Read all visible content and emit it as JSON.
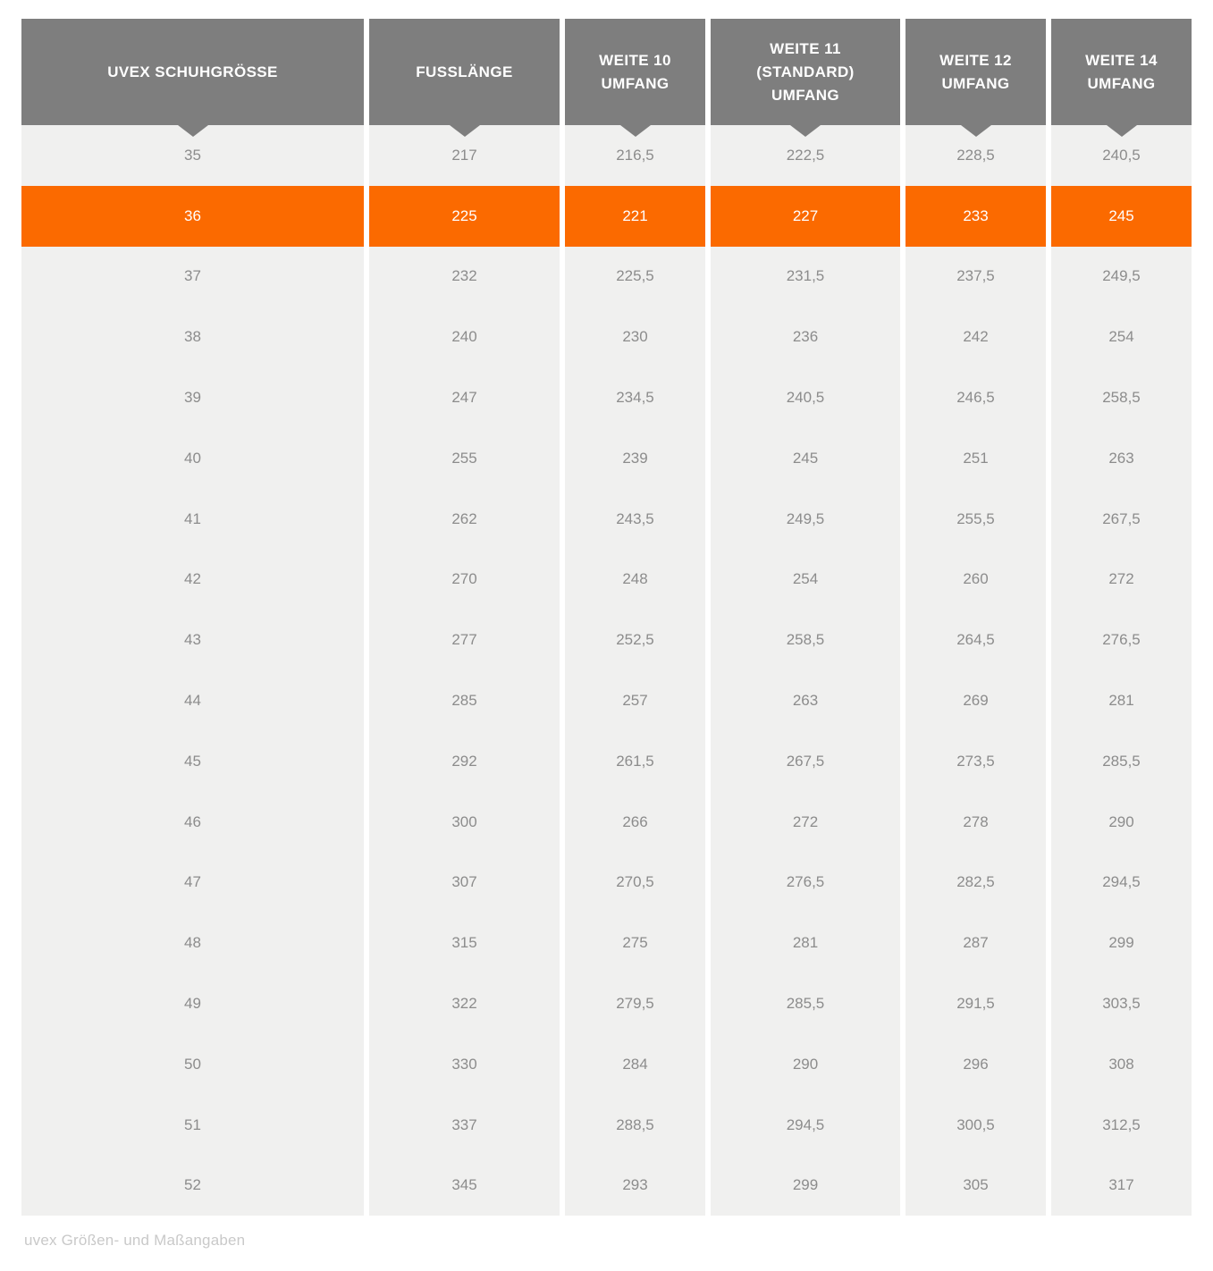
{
  "chart_data": {
    "type": "table",
    "title": "uvex Größen- und Maßangaben",
    "columns": [
      "UVEX SCHUHGRÖSSE",
      "FUSSLÄNGE",
      "WEITE 10 UMFANG",
      "WEITE 11 (STANDARD) UMFANG",
      "WEITE 12 UMFANG",
      "WEITE 14 UMFANG"
    ],
    "column_ids": [
      "uvex-schuhgroesse",
      "fusslaenge",
      "weite-10-umfang",
      "weite-11-standard-umfang",
      "weite-12-umfang",
      "weite-14-umfang"
    ],
    "header_lines": [
      [
        "UVEX SCHUHGRÖSSE"
      ],
      [
        "FUSSLÄNGE"
      ],
      [
        "WEITE 10",
        "UMFANG"
      ],
      [
        "WEITE 11",
        "(STANDARD)",
        "UMFANG"
      ],
      [
        "WEITE 12",
        "UMFANG"
      ],
      [
        "WEITE 14",
        "UMFANG"
      ]
    ],
    "rows": [
      [
        "35",
        "217",
        "216,5",
        "222,5",
        "228,5",
        "240,5"
      ],
      [
        "36",
        "225",
        "221",
        "227",
        "233",
        "245"
      ],
      [
        "37",
        "232",
        "225,5",
        "231,5",
        "237,5",
        "249,5"
      ],
      [
        "38",
        "240",
        "230",
        "236",
        "242",
        "254"
      ],
      [
        "39",
        "247",
        "234,5",
        "240,5",
        "246,5",
        "258,5"
      ],
      [
        "40",
        "255",
        "239",
        "245",
        "251",
        "263"
      ],
      [
        "41",
        "262",
        "243,5",
        "249,5",
        "255,5",
        "267,5"
      ],
      [
        "42",
        "270",
        "248",
        "254",
        "260",
        "272"
      ],
      [
        "43",
        "277",
        "252,5",
        "258,5",
        "264,5",
        "276,5"
      ],
      [
        "44",
        "285",
        "257",
        "263",
        "269",
        "281"
      ],
      [
        "45",
        "292",
        "261,5",
        "267,5",
        "273,5",
        "285,5"
      ],
      [
        "46",
        "300",
        "266",
        "272",
        "278",
        "290"
      ],
      [
        "47",
        "307",
        "270,5",
        "276,5",
        "282,5",
        "294,5"
      ],
      [
        "48",
        "315",
        "275",
        "281",
        "287",
        "299"
      ],
      [
        "49",
        "322",
        "279,5",
        "285,5",
        "291,5",
        "303,5"
      ],
      [
        "50",
        "330",
        "284",
        "290",
        "296",
        "308"
      ],
      [
        "51",
        "337",
        "288,5",
        "294,5",
        "300,5",
        "312,5"
      ],
      [
        "52",
        "345",
        "293",
        "299",
        "305",
        "317"
      ]
    ],
    "highlighted_row": "36"
  },
  "caption": "uvex Größen- und Maßangaben",
  "colors": {
    "header_bg": "#7e7e7e",
    "header_text": "#ffffff",
    "row_bg": "#f0f0ef",
    "cell_text": "#8c8c8c",
    "highlight_bg": "#fb6a00",
    "highlight_text": "#ffffff",
    "caption_text": "#c9c9c9",
    "page_bg": "#ffffff"
  }
}
